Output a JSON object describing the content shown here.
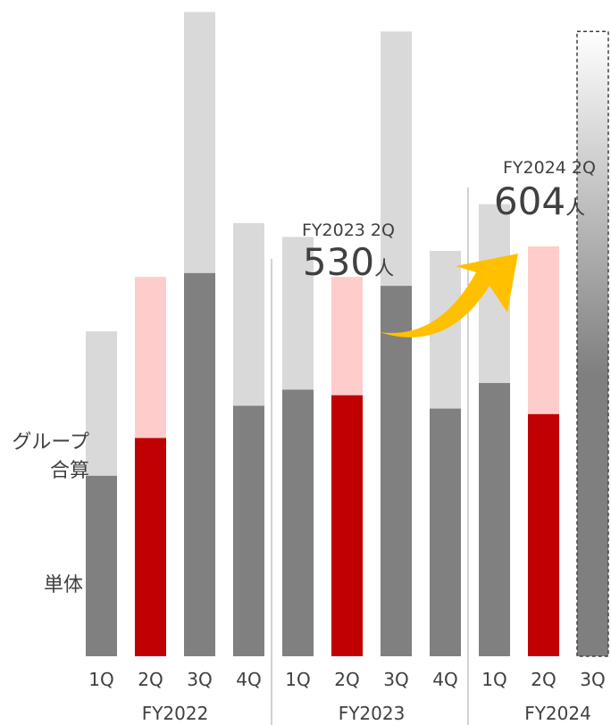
{
  "chart_data": {
    "type": "bar",
    "stacked": true,
    "colors": {
      "group_regular": "#d9d9d9",
      "group_highlight": "#ffcccc",
      "single_regular": "#808080",
      "single_highlight": "#c00000",
      "arrow": "#ffc000",
      "separator": "#a6a6a6",
      "forecast": "#7f7f7f"
    },
    "series_labels": {
      "group": "グループ\n合算",
      "single": "単体"
    },
    "groups": [
      {
        "label": "FY2022",
        "bars": [
          {
            "label": "1Q",
            "single": 325,
            "total": 585
          },
          {
            "label": "2Q",
            "single": 393,
            "total": 683,
            "highlight": true
          },
          {
            "label": "3Q",
            "single": 690,
            "total": 1160
          },
          {
            "label": "4Q",
            "single": 451,
            "total": 780
          }
        ]
      },
      {
        "label": "FY2023",
        "bars": [
          {
            "label": "1Q",
            "single": 480,
            "total": 755
          },
          {
            "label": "2Q",
            "single": 470,
            "total": 683,
            "highlight": true
          },
          {
            "label": "3Q",
            "single": 667,
            "total": 1125
          },
          {
            "label": "4Q",
            "single": 446,
            "total": 730
          }
        ]
      },
      {
        "label": "FY2024",
        "bars": [
          {
            "label": "1Q",
            "single": 492,
            "total": 814
          },
          {
            "label": "2Q",
            "single": 436,
            "total": 738,
            "highlight": true
          },
          {
            "label": "3Q",
            "forecast": true,
            "total": 1125
          }
        ]
      }
    ],
    "callouts": [
      {
        "period": "FY2023 2Q",
        "value": "530",
        "unit": "人"
      },
      {
        "period": "FY2024 2Q",
        "value": "604",
        "unit": "人"
      }
    ]
  }
}
